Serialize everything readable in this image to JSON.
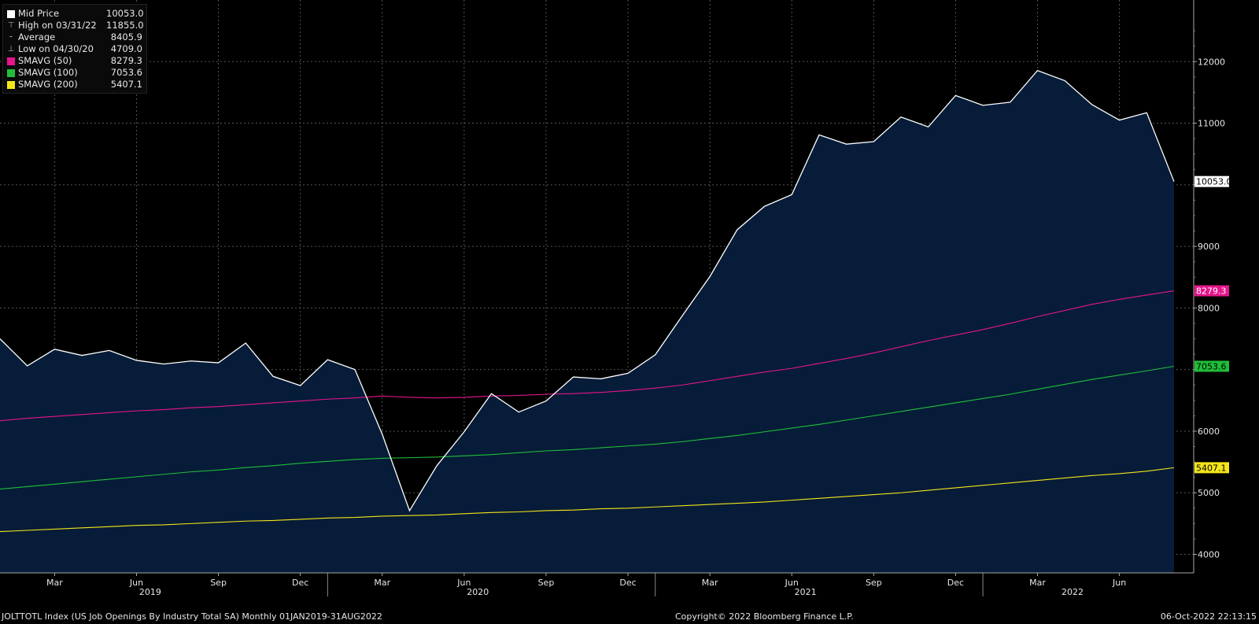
{
  "legend": [
    {
      "label": "Mid Price",
      "value": "10053.0",
      "color": "#ffffff",
      "marker": "square"
    },
    {
      "label": "High on 03/31/22",
      "value": "11855.0",
      "color": "#aaaaaa",
      "marker": "high"
    },
    {
      "label": "Average",
      "value": "8405.9",
      "color": "#aaaaaa",
      "marker": "avg"
    },
    {
      "label": "Low on 04/30/20",
      "value": "4709.0",
      "color": "#aaaaaa",
      "marker": "low"
    },
    {
      "label": "SMAVG (50)",
      "value": "8279.3",
      "color": "#e6158c",
      "marker": "square"
    },
    {
      "label": "SMAVG (100)",
      "value": "7053.6",
      "color": "#1fbf3a",
      "marker": "square"
    },
    {
      "label": "SMAVG (200)",
      "value": "5407.1",
      "color": "#f5e61a",
      "marker": "square"
    }
  ],
  "footer": {
    "left": "JOLTTOTL Index (US Job Openings By Industry Total SA)  Monthly 01JAN2019-31AUG2022",
    "center": "Copyright© 2022 Bloomberg Finance L.P.",
    "right": "06-Oct-2022 22:13:15"
  },
  "chart_data": {
    "type": "area",
    "x": [
      "2019-01",
      "2019-02",
      "2019-03",
      "2019-04",
      "2019-05",
      "2019-06",
      "2019-07",
      "2019-08",
      "2019-09",
      "2019-10",
      "2019-11",
      "2019-12",
      "2020-01",
      "2020-02",
      "2020-03",
      "2020-04",
      "2020-05",
      "2020-06",
      "2020-07",
      "2020-08",
      "2020-09",
      "2020-10",
      "2020-11",
      "2020-12",
      "2021-01",
      "2021-02",
      "2021-03",
      "2021-04",
      "2021-05",
      "2021-06",
      "2021-07",
      "2021-08",
      "2021-09",
      "2021-10",
      "2021-11",
      "2021-12",
      "2022-01",
      "2022-02",
      "2022-03",
      "2022-04",
      "2022-05",
      "2022-06",
      "2022-07",
      "2022-08"
    ],
    "series": [
      {
        "name": "Mid Price",
        "color": "#ffffff",
        "values": [
          7500,
          7060,
          7330,
          7230,
          7310,
          7150,
          7090,
          7140,
          7110,
          7430,
          6890,
          6740,
          7160,
          7000,
          5950,
          4709,
          5440,
          5990,
          6610,
          6310,
          6490,
          6880,
          6850,
          6940,
          7240,
          7880,
          8510,
          9270,
          9650,
          9840,
          10810,
          10660,
          10700,
          11100,
          10940,
          11450,
          11290,
          11340,
          11855,
          11690,
          11300,
          11050,
          11170,
          10053
        ]
      },
      {
        "name": "SMAVG (50)",
        "color": "#e6158c",
        "values": [
          6170,
          6210,
          6240,
          6270,
          6300,
          6330,
          6350,
          6380,
          6400,
          6430,
          6460,
          6490,
          6520,
          6540,
          6570,
          6550,
          6540,
          6550,
          6570,
          6580,
          6600,
          6610,
          6630,
          6660,
          6700,
          6750,
          6820,
          6890,
          6960,
          7020,
          7100,
          7180,
          7270,
          7370,
          7470,
          7560,
          7650,
          7750,
          7860,
          7960,
          8060,
          8140,
          8210,
          8279.3
        ]
      },
      {
        "name": "SMAVG (100)",
        "color": "#1fbf3a",
        "values": [
          5060,
          5100,
          5140,
          5180,
          5220,
          5260,
          5300,
          5340,
          5370,
          5410,
          5440,
          5480,
          5510,
          5540,
          5560,
          5570,
          5580,
          5600,
          5620,
          5650,
          5680,
          5700,
          5730,
          5760,
          5790,
          5830,
          5880,
          5930,
          5990,
          6050,
          6110,
          6180,
          6250,
          6320,
          6390,
          6460,
          6530,
          6600,
          6680,
          6760,
          6840,
          6910,
          6980,
          7053.6
        ]
      },
      {
        "name": "SMAVG (200)",
        "color": "#f5e61a",
        "values": [
          4370,
          4390,
          4410,
          4430,
          4450,
          4470,
          4480,
          4500,
          4520,
          4540,
          4550,
          4570,
          4590,
          4600,
          4620,
          4630,
          4640,
          4660,
          4680,
          4690,
          4710,
          4720,
          4740,
          4750,
          4770,
          4790,
          4810,
          4830,
          4850,
          4880,
          4910,
          4940,
          4970,
          5000,
          5040,
          5080,
          5120,
          5160,
          5200,
          5240,
          5280,
          5310,
          5350,
          5407.1
        ]
      }
    ],
    "x_tick_labels": [
      "Mar",
      "Jun",
      "Sep",
      "Dec",
      "Mar",
      "Jun",
      "Sep",
      "Dec",
      "Mar",
      "Jun",
      "Sep",
      "Dec",
      "Mar",
      "Jun"
    ],
    "year_labels": [
      "2019",
      "2020",
      "2021",
      "2022"
    ],
    "y_ticks": [
      4000,
      5000,
      6000,
      7000,
      8000,
      9000,
      10000,
      11000,
      12000
    ],
    "y_tick_labels": [
      "4000",
      "5000",
      "6000",
      "",
      "8000",
      "9000",
      "",
      "11000",
      "12000"
    ],
    "ylim": [
      3700,
      13000
    ],
    "last_value_labels": [
      {
        "text": "10053.0",
        "value": 10053,
        "bg": "#ffffff",
        "fg": "#000000"
      },
      {
        "text": "8279.3",
        "value": 8279.3,
        "bg": "#e6158c",
        "fg": "#ffffff"
      },
      {
        "text": "7053.6",
        "value": 7053.6,
        "bg": "#1fbf3a",
        "fg": "#000000"
      },
      {
        "text": "5407.1",
        "value": 5407.1,
        "bg": "#f5e61a",
        "fg": "#000000"
      }
    ],
    "area_fill": "#061c38",
    "grid": true,
    "legend_position": "top-left"
  }
}
